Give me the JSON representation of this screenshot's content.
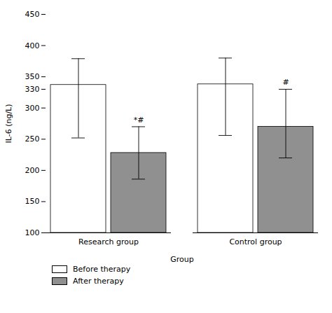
{
  "chart_data": {
    "type": "bar",
    "xlabel": "Group",
    "ylabel": "IL-6 (ng/L)",
    "categories": [
      "Research group",
      "Control group"
    ],
    "series": [
      {
        "name": "Before therapy",
        "color": "#ffffff",
        "values": [
          337,
          338
        ],
        "error_upper": [
          42,
          42
        ],
        "error_lower": [
          85,
          82
        ]
      },
      {
        "name": "After therapy",
        "color": "#909090",
        "values": [
          228,
          270
        ],
        "error_upper": [
          42,
          60
        ],
        "error_lower": [
          42,
          50
        ]
      }
    ],
    "annotations": [
      {
        "category": "Research group",
        "series": "After therapy",
        "text": "*#"
      },
      {
        "category": "Control group",
        "series": "After therapy",
        "text": "#"
      }
    ],
    "ylim": [
      100,
      450
    ],
    "yticks": [
      100,
      150,
      200,
      250,
      300,
      330,
      350,
      400,
      450
    ],
    "legend": "bottom",
    "grid": false
  }
}
